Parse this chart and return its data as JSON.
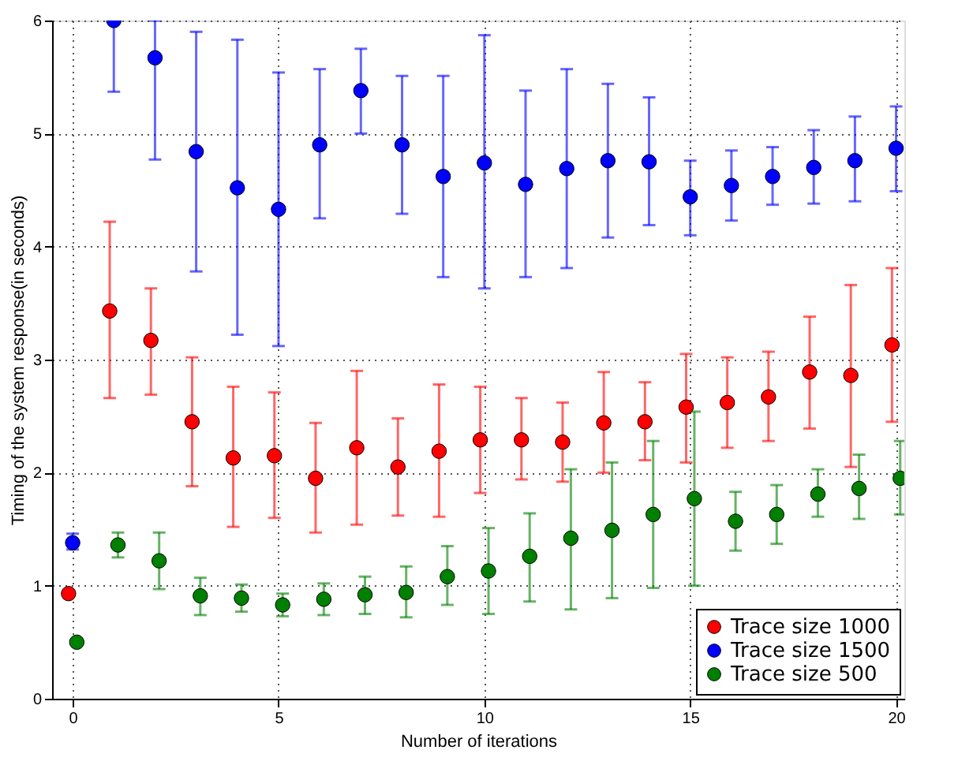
{
  "chart_data": {
    "type": "scatter",
    "xlabel": "Number of iterations",
    "ylabel": "Timing of the system response(in seconds)",
    "xlim": [
      -0.5,
      20.2
    ],
    "ylim": [
      0,
      6
    ],
    "xticks": [
      0,
      5,
      10,
      15,
      20
    ],
    "yticks": [
      0,
      1,
      2,
      3,
      4,
      5,
      6
    ],
    "grid": true,
    "legend": "bottom right",
    "marker": "circle",
    "series": [
      {
        "name": "Trace size 1000",
        "color": "#ff0000",
        "x": [
          -0.1,
          0.9,
          1.9,
          2.9,
          3.9,
          4.9,
          5.9,
          6.9,
          7.9,
          8.9,
          9.9,
          10.9,
          11.9,
          12.9,
          13.9,
          14.9,
          15.9,
          16.9,
          17.9,
          18.9,
          19.9
        ],
        "values": [
          0.93,
          3.43,
          3.17,
          2.45,
          2.13,
          2.15,
          1.95,
          2.22,
          2.05,
          2.19,
          2.29,
          2.29,
          2.27,
          2.44,
          2.45,
          2.58,
          2.62,
          2.67,
          2.89,
          2.86,
          3.13
        ],
        "errors": [
          null,
          [
            2.66,
            4.22
          ],
          [
            2.69,
            3.63
          ],
          [
            1.88,
            3.02
          ],
          [
            1.52,
            2.76
          ],
          [
            1.6,
            2.71
          ],
          [
            1.47,
            2.44
          ],
          [
            1.54,
            2.9
          ],
          [
            1.62,
            2.48
          ],
          [
            1.61,
            2.78
          ],
          [
            1.82,
            2.76
          ],
          [
            1.94,
            2.66
          ],
          [
            1.92,
            2.62
          ],
          [
            2.0,
            2.89
          ],
          [
            2.11,
            2.8
          ],
          [
            2.09,
            3.05
          ],
          [
            2.22,
            3.02
          ],
          [
            2.28,
            3.07
          ],
          [
            2.39,
            3.38
          ],
          [
            2.05,
            3.66
          ],
          [
            2.45,
            3.81
          ]
        ]
      },
      {
        "name": "Trace size 1500",
        "color": "#0000ff",
        "x": [
          0,
          1,
          2,
          3,
          4,
          5,
          6,
          7,
          8,
          9,
          10,
          11,
          12,
          13,
          14,
          15,
          16,
          17,
          18,
          19,
          20
        ],
        "values": [
          1.38,
          6.0,
          5.67,
          4.84,
          4.52,
          4.33,
          4.9,
          5.38,
          4.9,
          4.62,
          4.74,
          4.55,
          4.69,
          4.76,
          4.75,
          4.44,
          4.54,
          4.62,
          4.7,
          4.76,
          4.87
        ],
        "errors": [
          [
            1.32,
            1.46
          ],
          [
            5.37,
            6.0
          ],
          [
            4.77,
            6.0
          ],
          [
            3.78,
            5.9
          ],
          [
            3.22,
            5.83
          ],
          [
            3.12,
            5.54
          ],
          [
            4.25,
            5.57
          ],
          [
            5.0,
            5.75
          ],
          [
            4.29,
            5.51
          ],
          [
            3.73,
            5.51
          ],
          [
            3.63,
            5.87
          ],
          [
            3.73,
            5.38
          ],
          [
            3.81,
            5.57
          ],
          [
            4.08,
            5.44
          ],
          [
            4.19,
            5.32
          ],
          [
            4.1,
            4.76
          ],
          [
            4.23,
            4.85
          ],
          [
            4.37,
            4.88
          ],
          [
            4.38,
            5.03
          ],
          [
            4.4,
            5.15
          ],
          [
            4.49,
            5.24
          ]
        ]
      },
      {
        "name": "Trace size 500",
        "color": "#008000",
        "x": [
          0.1,
          1.1,
          2.1,
          3.1,
          4.1,
          5.1,
          6.1,
          7.1,
          8.1,
          9.1,
          10.1,
          11.1,
          12.1,
          13.1,
          14.1,
          15.1,
          16.1,
          17.1,
          18.1,
          19.1,
          20.1
        ],
        "values": [
          0.5,
          1.36,
          1.22,
          0.91,
          0.89,
          0.83,
          0.88,
          0.92,
          0.94,
          1.08,
          1.13,
          1.26,
          1.42,
          1.49,
          1.63,
          1.77,
          1.57,
          1.63,
          1.81,
          1.86,
          1.95
        ],
        "errors": [
          null,
          [
            1.25,
            1.47
          ],
          [
            0.97,
            1.47
          ],
          [
            0.74,
            1.07
          ],
          [
            0.77,
            1.01
          ],
          [
            0.73,
            0.93
          ],
          [
            0.74,
            1.02
          ],
          [
            0.75,
            1.08
          ],
          [
            0.72,
            1.17
          ],
          [
            0.83,
            1.35
          ],
          [
            0.75,
            1.51
          ],
          [
            0.86,
            1.64
          ],
          [
            0.79,
            2.03
          ],
          [
            0.89,
            2.09
          ],
          [
            0.98,
            2.28
          ],
          [
            1.0,
            2.54
          ],
          [
            1.31,
            1.83
          ],
          [
            1.37,
            1.89
          ],
          [
            1.61,
            2.03
          ],
          [
            1.59,
            2.16
          ],
          [
            1.63,
            2.28
          ]
        ]
      }
    ]
  }
}
